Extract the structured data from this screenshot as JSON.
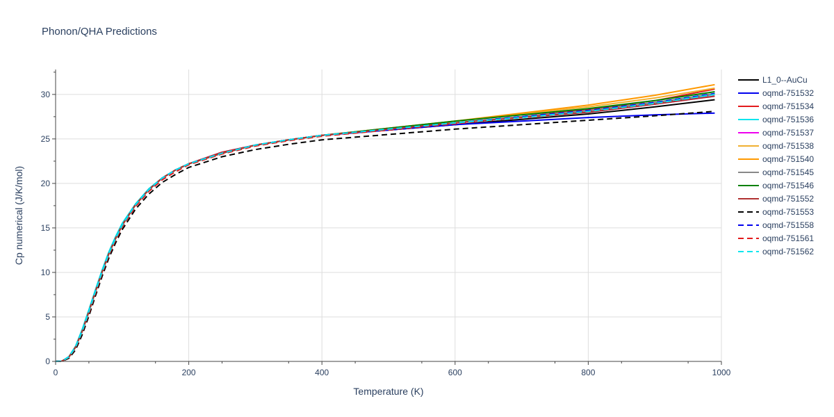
{
  "chart_data": {
    "type": "line",
    "title": "Phonon/QHA Predictions",
    "xlabel": "Temperature (K)",
    "ylabel": "Cp numerical (J/K/mol)",
    "xlim": [
      0,
      1000
    ],
    "ylim": [
      0,
      32.8
    ],
    "xticks": [
      0,
      200,
      400,
      600,
      800,
      1000
    ],
    "yticks": [
      0,
      5,
      10,
      15,
      20,
      25,
      30
    ],
    "grid": true,
    "legend": "right",
    "x": [
      0,
      10,
      20,
      30,
      40,
      50,
      60,
      70,
      80,
      90,
      100,
      120,
      140,
      160,
      180,
      200,
      250,
      300,
      350,
      400,
      500,
      600,
      700,
      800,
      900,
      990
    ],
    "series": [
      {
        "name": "L1_0--AuCu",
        "color": "#000000",
        "dash": "solid",
        "values": [
          0,
          0.05,
          0.5,
          1.6,
          3.4,
          5.6,
          7.9,
          10.1,
          12.1,
          13.8,
          15.3,
          17.6,
          19.3,
          20.6,
          21.5,
          22.2,
          23.5,
          24.3,
          24.9,
          25.4,
          26.0,
          26.6,
          27.2,
          27.8,
          28.6,
          29.4
        ]
      },
      {
        "name": "oqmd-751532",
        "color": "#0000ee",
        "dash": "solid",
        "values": [
          0,
          0.05,
          0.5,
          1.6,
          3.4,
          5.6,
          7.9,
          10.1,
          12.1,
          13.8,
          15.3,
          17.6,
          19.3,
          20.6,
          21.5,
          22.2,
          23.5,
          24.3,
          24.9,
          25.4,
          26.0,
          26.6,
          27.0,
          27.4,
          27.7,
          27.9
        ]
      },
      {
        "name": "oqmd-751534",
        "color": "#e31a1c",
        "dash": "solid",
        "values": [
          0,
          0.05,
          0.5,
          1.6,
          3.4,
          5.6,
          7.9,
          10.1,
          12.1,
          13.8,
          15.3,
          17.6,
          19.3,
          20.6,
          21.5,
          22.2,
          23.5,
          24.3,
          24.9,
          25.4,
          26.1,
          26.8,
          27.5,
          28.3,
          29.3,
          30.6
        ]
      },
      {
        "name": "oqmd-751536",
        "color": "#00e5ee",
        "dash": "solid",
        "values": [
          0,
          0.05,
          0.55,
          1.7,
          3.6,
          5.8,
          8.1,
          10.3,
          12.3,
          14.0,
          15.5,
          17.7,
          19.4,
          20.6,
          21.5,
          22.2,
          23.4,
          24.3,
          24.9,
          25.4,
          26.1,
          26.8,
          27.4,
          28.1,
          29.0,
          30.0
        ]
      },
      {
        "name": "oqmd-751537",
        "color": "#ee00ee",
        "dash": "solid",
        "values": [
          0,
          0.05,
          0.5,
          1.6,
          3.4,
          5.6,
          7.9,
          10.1,
          12.1,
          13.8,
          15.3,
          17.6,
          19.3,
          20.6,
          21.5,
          22.2,
          23.4,
          24.3,
          24.9,
          25.4,
          26.1,
          26.8,
          27.4,
          28.0,
          28.9,
          29.8
        ]
      },
      {
        "name": "oqmd-751538",
        "color": "#f0b030",
        "dash": "solid",
        "values": [
          0,
          0.05,
          0.5,
          1.6,
          3.4,
          5.6,
          7.9,
          10.1,
          12.1,
          13.8,
          15.3,
          17.6,
          19.3,
          20.6,
          21.5,
          22.2,
          23.4,
          24.3,
          24.9,
          25.4,
          26.2,
          27.0,
          27.8,
          28.6,
          29.6,
          30.7
        ]
      },
      {
        "name": "oqmd-751540",
        "color": "#ff9900",
        "dash": "solid",
        "values": [
          0,
          0.05,
          0.5,
          1.6,
          3.4,
          5.6,
          7.9,
          10.1,
          12.1,
          13.8,
          15.3,
          17.6,
          19.3,
          20.6,
          21.5,
          22.2,
          23.4,
          24.3,
          24.9,
          25.4,
          26.2,
          27.0,
          27.9,
          28.8,
          29.9,
          31.1
        ]
      },
      {
        "name": "oqmd-751545",
        "color": "#888888",
        "dash": "solid",
        "values": [
          0,
          0.05,
          0.5,
          1.6,
          3.4,
          5.6,
          7.9,
          10.1,
          12.1,
          13.8,
          15.3,
          17.6,
          19.3,
          20.6,
          21.5,
          22.2,
          23.4,
          24.3,
          24.9,
          25.4,
          26.1,
          26.8,
          27.5,
          28.2,
          29.1,
          30.1
        ]
      },
      {
        "name": "oqmd-751546",
        "color": "#008000",
        "dash": "solid",
        "values": [
          0,
          0.05,
          0.5,
          1.6,
          3.4,
          5.6,
          7.9,
          10.1,
          12.1,
          13.8,
          15.3,
          17.6,
          19.3,
          20.6,
          21.5,
          22.2,
          23.4,
          24.3,
          24.9,
          25.4,
          26.2,
          27.0,
          27.7,
          28.4,
          29.3,
          30.3
        ]
      },
      {
        "name": "oqmd-751552",
        "color": "#b03030",
        "dash": "solid",
        "values": [
          0,
          0.05,
          0.5,
          1.6,
          3.4,
          5.6,
          7.9,
          10.1,
          12.1,
          13.8,
          15.3,
          17.6,
          19.3,
          20.6,
          21.5,
          22.2,
          23.4,
          24.3,
          24.9,
          25.4,
          26.1,
          26.8,
          27.4,
          28.0,
          28.9,
          29.8
        ]
      },
      {
        "name": "oqmd-751553",
        "color": "#000000",
        "dash": "dash",
        "values": [
          0,
          0.02,
          0.35,
          1.3,
          3.0,
          5.1,
          7.4,
          9.6,
          11.6,
          13.3,
          14.8,
          17.1,
          18.8,
          20.1,
          21.0,
          21.8,
          23.0,
          23.8,
          24.4,
          24.9,
          25.5,
          26.1,
          26.6,
          27.1,
          27.6,
          28.1
        ]
      },
      {
        "name": "oqmd-751558",
        "color": "#0000ee",
        "dash": "dash",
        "values": [
          0,
          0.05,
          0.5,
          1.6,
          3.4,
          5.6,
          7.9,
          10.1,
          12.1,
          13.8,
          15.3,
          17.6,
          19.3,
          20.6,
          21.5,
          22.2,
          23.4,
          24.3,
          24.9,
          25.4,
          26.1,
          26.8,
          27.5,
          28.2,
          29.1,
          30.1
        ]
      },
      {
        "name": "oqmd-751561",
        "color": "#e31a1c",
        "dash": "dash",
        "values": [
          0,
          0.04,
          0.45,
          1.5,
          3.3,
          5.4,
          7.7,
          9.9,
          11.9,
          13.6,
          15.1,
          17.4,
          19.1,
          20.4,
          21.3,
          22.1,
          23.3,
          24.2,
          24.8,
          25.3,
          26.0,
          26.7,
          27.4,
          28.1,
          29.0,
          30.0
        ]
      },
      {
        "name": "oqmd-751562",
        "color": "#00e5ee",
        "dash": "dash",
        "values": [
          0,
          0.05,
          0.5,
          1.6,
          3.4,
          5.6,
          7.9,
          10.1,
          12.1,
          13.8,
          15.3,
          17.6,
          19.3,
          20.6,
          21.5,
          22.2,
          23.4,
          24.3,
          24.9,
          25.4,
          26.1,
          26.8,
          27.4,
          28.1,
          29.0,
          30.0
        ]
      }
    ]
  }
}
